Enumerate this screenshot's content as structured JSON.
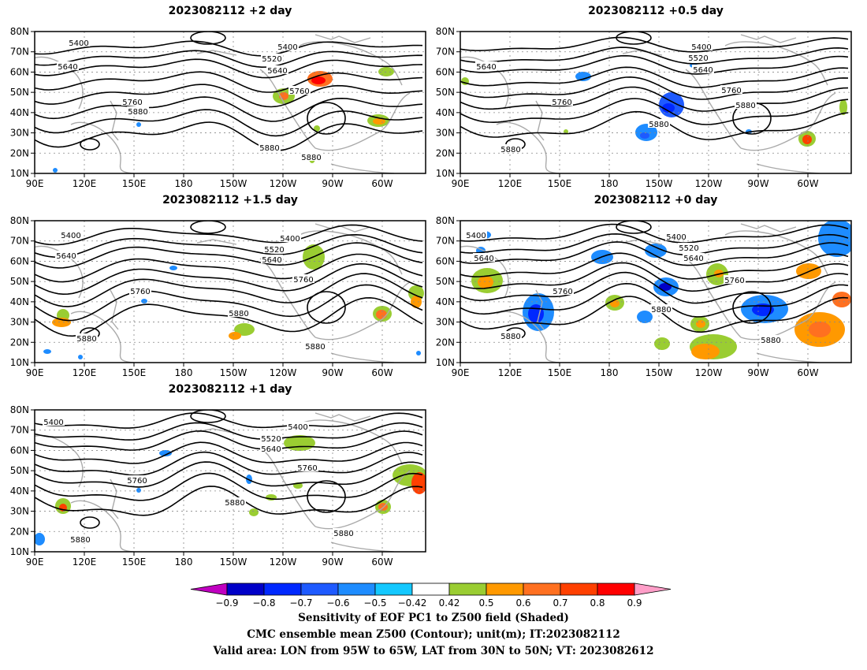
{
  "panels": [
    {
      "id": "p2",
      "title": "2023082112 +2 day"
    },
    {
      "id": "p05",
      "title": "2023082112 +0.5 day"
    },
    {
      "id": "p15",
      "title": "2023082112 +1.5 day"
    },
    {
      "id": "p0",
      "title": "2023082112 +0 day"
    },
    {
      "id": "p1",
      "title": "2023082112 +1 day"
    }
  ],
  "axes": {
    "lat_labels": [
      "80N",
      "70N",
      "60N",
      "50N",
      "40N",
      "30N",
      "20N",
      "10N"
    ],
    "lon_labels": [
      "90E",
      "120E",
      "150E",
      "180",
      "150W",
      "120W",
      "90W",
      "60W"
    ]
  },
  "contour_levels": [
    "5400",
    "5520",
    "5640",
    "5760",
    "5880"
  ],
  "colorbar": {
    "labels": [
      "−0.9",
      "−0.8",
      "−0.7",
      "−0.6",
      "−0.5",
      "−0.42",
      "0.42",
      "0.5",
      "0.6",
      "0.7",
      "0.8",
      "0.9"
    ],
    "colors": [
      "#c000c0",
      "#0000c8",
      "#0028ff",
      "#1e5aff",
      "#1e8cff",
      "#14c8ff",
      "#ffffff",
      "#9acd32",
      "#ff9900",
      "#ff7020",
      "#ff4000",
      "#ff0000",
      "#ff9ec8"
    ]
  },
  "caption": {
    "line1": "Sensitivity of EOF PC1 to Z500 field (Shaded)",
    "line2": "CMC ensemble mean Z500 (Contour); unit(m); IT:2023082112",
    "line3": "Valid area: LON from 95W to 65W, LAT from 30N to 50N; VT: 2023082612"
  }
}
